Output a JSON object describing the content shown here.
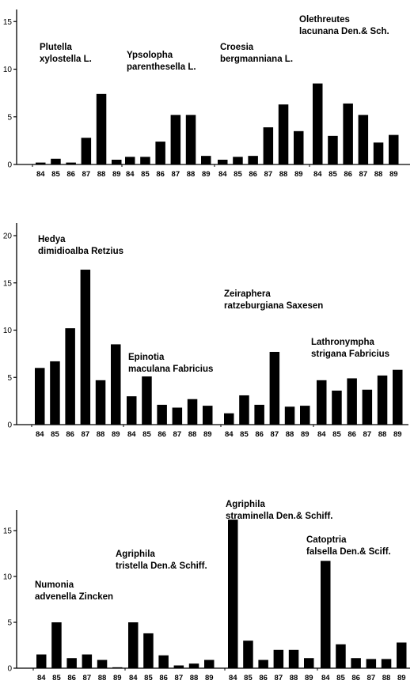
{
  "chart_data": [
    {
      "type": "bar",
      "title": "",
      "xlabel": "",
      "ylabel": "",
      "ylim": [
        0,
        16
      ],
      "yticks": [
        "0",
        "5",
        "10",
        "15"
      ],
      "grid": false,
      "groups": [
        {
          "species": [
            "Plutella",
            "xylostella L."
          ],
          "categories": [
            "84",
            "85",
            "86",
            "87",
            "88",
            "89"
          ],
          "values": [
            0.2,
            0.6,
            0.2,
            2.8,
            7.4,
            0.5
          ]
        },
        {
          "species": [
            "Ypsolopha",
            "parenthesella L."
          ],
          "categories": [
            "84",
            "85",
            "86",
            "87",
            "88",
            "89"
          ],
          "values": [
            0.8,
            0.8,
            2.4,
            5.2,
            5.2,
            0.9
          ]
        },
        {
          "species": [
            "Croesia",
            "bergmanniana L."
          ],
          "categories": [
            "84",
            "85",
            "86",
            "87",
            "88",
            "89"
          ],
          "values": [
            0.5,
            0.8,
            0.9,
            3.9,
            6.3,
            3.5
          ]
        },
        {
          "species": [
            "Olethreutes",
            "lacunana Den.& Sch."
          ],
          "categories": [
            "84",
            "85",
            "86",
            "87",
            "88",
            "89"
          ],
          "values": [
            8.5,
            3.0,
            6.4,
            5.2,
            2.3,
            3.1
          ]
        }
      ]
    },
    {
      "type": "bar",
      "title": "",
      "xlabel": "",
      "ylabel": "",
      "ylim": [
        0,
        21
      ],
      "yticks": [
        "0",
        "5",
        "10",
        "15",
        "20"
      ],
      "grid": false,
      "groups": [
        {
          "species": [
            "Hedya",
            "dimidioalba Retzius"
          ],
          "categories": [
            "84",
            "85",
            "86",
            "87",
            "88",
            "89"
          ],
          "values": [
            6.0,
            6.7,
            10.2,
            16.4,
            4.7,
            8.5
          ]
        },
        {
          "species": [
            "Epinotia",
            "maculana Fabricius"
          ],
          "categories": [
            "84",
            "85",
            "86",
            "87",
            "88",
            "89"
          ],
          "values": [
            3.0,
            5.1,
            2.1,
            1.8,
            2.7,
            2.0
          ]
        },
        {
          "species": [
            "Zeiraphera",
            "ratzeburgiana Saxesen"
          ],
          "categories": [
            "84",
            "85",
            "86",
            "87",
            "88",
            "89"
          ],
          "values": [
            1.2,
            3.1,
            2.1,
            7.7,
            1.9,
            2.0
          ]
        },
        {
          "species": [
            "Lathronympha",
            "strigana Fabricius"
          ],
          "categories": [
            "84",
            "85",
            "86",
            "87",
            "88",
            "89"
          ],
          "values": [
            4.7,
            3.6,
            4.9,
            3.7,
            5.2,
            5.8
          ]
        }
      ]
    },
    {
      "type": "bar",
      "title": "",
      "xlabel": "",
      "ylabel": "",
      "ylim": [
        0,
        17
      ],
      "yticks": [
        "0",
        "5",
        "10",
        "15"
      ],
      "grid": false,
      "groups": [
        {
          "species": [
            "Numonia",
            "advenella Zincken"
          ],
          "categories": [
            "84",
            "85",
            "86",
            "87",
            "88",
            "89"
          ],
          "values": [
            1.5,
            5.0,
            1.1,
            1.5,
            0.9,
            0.1
          ]
        },
        {
          "species": [
            "Agriphila",
            "tristella Den.& Schiff."
          ],
          "categories": [
            "84",
            "85",
            "86",
            "87",
            "88",
            "89"
          ],
          "values": [
            5.0,
            3.8,
            1.4,
            0.3,
            0.5,
            0.9
          ]
        },
        {
          "species": [
            "Agriphila",
            "straminella Den.& Schiff."
          ],
          "categories": [
            "84",
            "85",
            "86",
            "87",
            "88",
            "89"
          ],
          "values": [
            16.2,
            3.0,
            0.9,
            2.0,
            2.0,
            1.1
          ]
        },
        {
          "species": [
            "Catoptria",
            "falsella Den.& Sciff."
          ],
          "categories": [
            "84",
            "85",
            "86",
            "87",
            "88",
            "89"
          ],
          "values": [
            11.7,
            2.6,
            1.1,
            1.0,
            1.0,
            2.8
          ]
        }
      ]
    }
  ]
}
